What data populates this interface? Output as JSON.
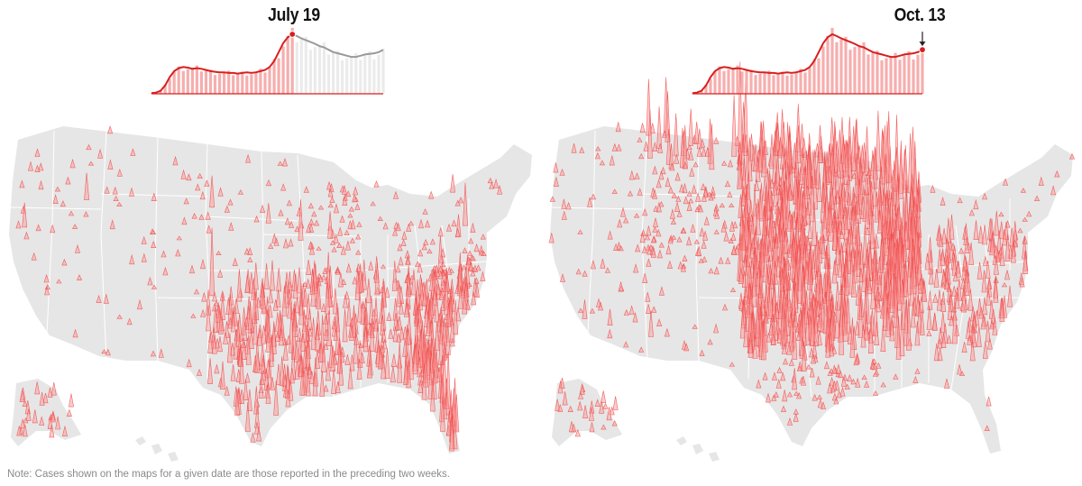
{
  "panels": [
    {
      "date_label": "July 19",
      "sparkline": {
        "series": [
          0.01,
          0.02,
          0.05,
          0.14,
          0.28,
          0.38,
          0.43,
          0.45,
          0.44,
          0.42,
          0.43,
          0.42,
          0.4,
          0.38,
          0.37,
          0.36,
          0.36,
          0.35,
          0.35,
          0.34,
          0.35,
          0.36,
          0.35,
          0.36,
          0.38,
          0.4,
          0.45,
          0.55,
          0.7,
          0.85,
          0.95,
          1.0,
          0.97,
          0.93,
          0.9,
          0.87,
          0.84,
          0.8,
          0.78,
          0.74,
          0.7,
          0.68,
          0.66,
          0.64,
          0.62,
          0.62,
          0.64,
          0.66,
          0.67,
          0.68,
          0.7,
          0.74
        ],
        "current_index": 31,
        "colors": {
          "past_line": "#d81f1f",
          "past_fill": "#f6aeae",
          "future_line": "#9a9a9a",
          "future_fill": "#ebebeb",
          "marker": "#d81f1f"
        }
      },
      "map": {
        "hotspots": [
          {
            "region": "southeast",
            "intensity": "high"
          },
          {
            "region": "texas",
            "intensity": "high"
          },
          {
            "region": "florida",
            "intensity": "high"
          },
          {
            "region": "midwest",
            "intensity": "low"
          },
          {
            "region": "west",
            "intensity": "low"
          }
        ],
        "colors": {
          "land": "#e6e6e6",
          "border": "#ffffff",
          "spike": "#f14a4a",
          "spike_fill": "#f8a3a3"
        }
      }
    },
    {
      "date_label": "Oct. 13",
      "sparkline": {
        "series": [
          0.01,
          0.02,
          0.05,
          0.14,
          0.28,
          0.38,
          0.43,
          0.45,
          0.44,
          0.42,
          0.43,
          0.42,
          0.4,
          0.38,
          0.37,
          0.36,
          0.36,
          0.35,
          0.35,
          0.34,
          0.35,
          0.36,
          0.35,
          0.36,
          0.38,
          0.4,
          0.45,
          0.55,
          0.7,
          0.85,
          0.95,
          1.0,
          0.97,
          0.93,
          0.9,
          0.87,
          0.84,
          0.8,
          0.78,
          0.74,
          0.7,
          0.68,
          0.66,
          0.64,
          0.62,
          0.62,
          0.64,
          0.66,
          0.67,
          0.68,
          0.7,
          0.74
        ],
        "current_index": 51,
        "colors": {
          "past_line": "#d81f1f",
          "past_fill": "#f6aeae",
          "future_line": "#9a9a9a",
          "future_fill": "#ebebeb",
          "marker": "#d81f1f"
        }
      },
      "map": {
        "hotspots": [
          {
            "region": "dakotas",
            "intensity": "very high"
          },
          {
            "region": "wisconsin",
            "intensity": "very high"
          },
          {
            "region": "great-plains",
            "intensity": "high"
          },
          {
            "region": "midwest",
            "intensity": "high"
          },
          {
            "region": "southeast",
            "intensity": "medium"
          },
          {
            "region": "mountain-west",
            "intensity": "medium"
          }
        ],
        "colors": {
          "land": "#e6e6e6",
          "border": "#ffffff",
          "spike": "#f14a4a",
          "spike_fill": "#f8a3a3"
        }
      }
    }
  ],
  "note": "Note: Cases shown on the maps for a given date are those reported in the preceding two weeks."
}
